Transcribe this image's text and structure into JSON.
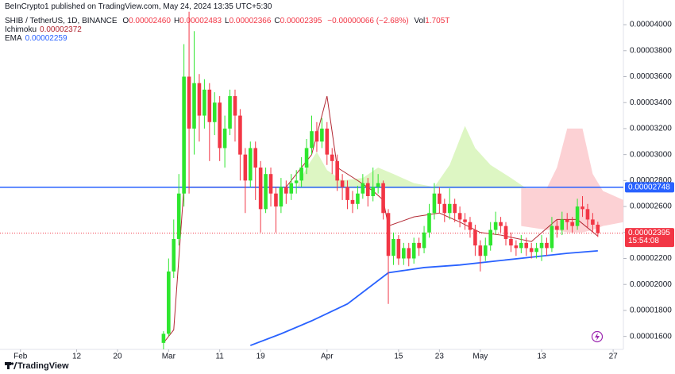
{
  "chart_data": {
    "type": "candlestick",
    "publisher": "BeInCrypto1 published on TradingView.com, May 24, 2024 13:35 UTC+5:30",
    "title": "SHIB / TetherUS, 1D, BINANCE",
    "ohlc_legend": [
      {
        "key": "O",
        "text": "0.00002460"
      },
      {
        "key": "H",
        "text": "0.00002483"
      },
      {
        "key": "L",
        "text": "0.00002366"
      },
      {
        "key": "C",
        "text": "0.00002395"
      }
    ],
    "change": "−0.00000066 (−2.68%)",
    "volume": {
      "key": "Vol",
      "text": "1.705T"
    },
    "footer": "TradingView",
    "up_color": "#2ee62e",
    "down_color": "#f23645",
    "xlim": [
      "2024-01-28",
      "2024-05-29"
    ],
    "xticks": [
      {
        "value": "2024-02-01",
        "label": "Feb"
      },
      {
        "value": "2024-02-12",
        "label": "12"
      },
      {
        "value": "2024-02-20",
        "label": "20"
      },
      {
        "value": "2024-03-01",
        "label": "Mar"
      },
      {
        "value": "2024-03-11",
        "label": "11"
      },
      {
        "value": "2024-03-19",
        "label": "19"
      },
      {
        "value": "2024-04-01",
        "label": "Apr"
      },
      {
        "value": "2024-04-15",
        "label": "15"
      },
      {
        "value": "2024-04-23",
        "label": "23"
      },
      {
        "value": "2024-05-01",
        "label": "May"
      },
      {
        "value": "2024-05-13",
        "label": "13"
      },
      {
        "value": "2024-05-27",
        "label": "27"
      }
    ],
    "ylim": [
      1.5e-05,
      4.19e-05
    ],
    "yticks": [
      {
        "value": 1.6e-05,
        "label": "0.00001600"
      },
      {
        "value": 1.8e-05,
        "label": "0.00001800"
      },
      {
        "value": 2e-05,
        "label": "0.00002000"
      },
      {
        "value": 2.2e-05,
        "label": "0.00002200"
      },
      {
        "value": 2.4e-05,
        "label": "0.00002400"
      },
      {
        "value": 2.6e-05,
        "label": "0.00002600"
      },
      {
        "value": 2.8e-05,
        "label": "0.00002800"
      },
      {
        "value": 3e-05,
        "label": "0.00003000"
      },
      {
        "value": 3.2e-05,
        "label": "0.00003200"
      },
      {
        "value": 3.4e-05,
        "label": "0.00003400"
      },
      {
        "value": 3.6e-05,
        "label": "0.00003600"
      },
      {
        "value": 3.8e-05,
        "label": "0.00003800"
      },
      {
        "value": 4e-05,
        "label": "0.00004000"
      }
    ],
    "x": [
      "2024-02-29",
      "2024-03-01",
      "2024-03-02",
      "2024-03-03",
      "2024-03-04",
      "2024-03-05",
      "2024-03-06",
      "2024-03-07",
      "2024-03-08",
      "2024-03-09",
      "2024-03-10",
      "2024-03-11",
      "2024-03-12",
      "2024-03-13",
      "2024-03-14",
      "2024-03-15",
      "2024-03-16",
      "2024-03-17",
      "2024-03-18",
      "2024-03-19",
      "2024-03-20",
      "2024-03-21",
      "2024-03-22",
      "2024-03-23",
      "2024-03-24",
      "2024-03-25",
      "2024-03-26",
      "2024-03-27",
      "2024-03-28",
      "2024-03-29",
      "2024-03-30",
      "2024-03-31",
      "2024-04-01",
      "2024-04-02",
      "2024-04-03",
      "2024-04-04",
      "2024-04-05",
      "2024-04-06",
      "2024-04-07",
      "2024-04-08",
      "2024-04-09",
      "2024-04-10",
      "2024-04-11",
      "2024-04-12",
      "2024-04-13",
      "2024-04-14",
      "2024-04-15",
      "2024-04-16",
      "2024-04-17",
      "2024-04-18",
      "2024-04-19",
      "2024-04-20",
      "2024-04-21",
      "2024-04-22",
      "2024-04-23",
      "2024-04-24",
      "2024-04-25",
      "2024-04-26",
      "2024-04-27",
      "2024-04-28",
      "2024-04-29",
      "2024-04-30",
      "2024-05-01",
      "2024-05-02",
      "2024-05-03",
      "2024-05-04",
      "2024-05-05",
      "2024-05-06",
      "2024-05-07",
      "2024-05-08",
      "2024-05-09",
      "2024-05-10",
      "2024-05-11",
      "2024-05-12",
      "2024-05-13",
      "2024-05-14",
      "2024-05-15",
      "2024-05-16",
      "2024-05-17",
      "2024-05-18",
      "2024-05-19",
      "2024-05-20",
      "2024-05-21",
      "2024-05-22",
      "2024-05-23",
      "2024-05-24"
    ],
    "open": [
      1.55e-05,
      1.62e-05,
      2.1e-05,
      2.35e-05,
      2.7e-05,
      3.6e-05,
      3.2e-05,
      3.55e-05,
      3.3e-05,
      3.5e-05,
      3.25e-05,
      3.4e-05,
      3.05e-05,
      3.2e-05,
      3.45e-05,
      3.3e-05,
      3e-05,
      2.8e-05,
      3.05e-05,
      2.9e-05,
      2.58e-05,
      2.85e-05,
      2.7e-05,
      2.6e-05,
      2.75e-05,
      2.7e-05,
      2.78e-05,
      2.8e-05,
      2.9e-05,
      3.05e-05,
      3.18e-05,
      3.1e-05,
      3.2e-05,
      3e-05,
      2.95e-05,
      2.8e-05,
      2.75e-05,
      2.65e-05,
      2.62e-05,
      2.7e-05,
      2.78e-05,
      2.68e-05,
      2.75e-05,
      2.78e-05,
      2.55e-05,
      2.22e-05,
      2.35e-05,
      2.2e-05,
      2.28e-05,
      2.2e-05,
      2.32e-05,
      2.28e-05,
      2.4e-05,
      2.55e-05,
      2.7e-05,
      2.62e-05,
      2.55e-05,
      2.62e-05,
      2.55e-05,
      2.5e-05,
      2.48e-05,
      2.42e-05,
      2.3e-05,
      2.22e-05,
      2.3e-05,
      2.42e-05,
      2.48e-05,
      2.45e-05,
      2.35e-05,
      2.3e-05,
      2.28e-05,
      2.32e-05,
      2.28e-05,
      2.25e-05,
      2.28e-05,
      2.32e-05,
      2.28e-05,
      2.45e-05,
      2.42e-05,
      2.5e-05,
      2.48e-05,
      2.45e-05,
      2.6e-05,
      2.58e-05,
      2.5e-05,
      2.46e-05
    ],
    "high": [
      1.64e-05,
      2.2e-05,
      2.5e-05,
      2.85e-05,
      3.85e-05,
      4.1e-05,
      3.95e-05,
      3.62e-05,
      3.58e-05,
      3.55e-05,
      3.48e-05,
      3.45e-05,
      3.3e-05,
      3.5e-05,
      3.5e-05,
      3.35e-05,
      3.05e-05,
      3.1e-05,
      3.1e-05,
      2.95e-05,
      2.9e-05,
      2.9e-05,
      2.75e-05,
      2.82e-05,
      2.8e-05,
      2.85e-05,
      2.88e-05,
      2.98e-05,
      3.12e-05,
      3.3e-05,
      3.25e-05,
      3.28e-05,
      3.25e-05,
      3.05e-05,
      3e-05,
      2.85e-05,
      2.8e-05,
      2.72e-05,
      2.76e-05,
      2.85e-05,
      2.82e-05,
      2.9e-05,
      2.85e-05,
      2.8e-05,
      2.58e-05,
      2.4e-05,
      2.38e-05,
      2.32e-05,
      2.32e-05,
      2.36e-05,
      2.36e-05,
      2.45e-05,
      2.62e-05,
      2.78e-05,
      2.75e-05,
      2.66e-05,
      2.74e-05,
      2.66e-05,
      2.6e-05,
      2.55e-05,
      2.52e-05,
      2.46e-05,
      2.34e-05,
      2.36e-05,
      2.48e-05,
      2.56e-05,
      2.52e-05,
      2.48e-05,
      2.4e-05,
      2.34e-05,
      2.38e-05,
      2.36e-05,
      2.32e-05,
      2.32e-05,
      2.38e-05,
      2.36e-05,
      2.52e-05,
      2.5e-05,
      2.56e-05,
      2.55e-05,
      2.52e-05,
      2.66e-05,
      2.68e-05,
      2.62e-05,
      2.55e-05,
      2.483e-05
    ],
    "low": [
      1.5e-05,
      1.6e-05,
      2.05e-05,
      2.3e-05,
      2.6e-05,
      2.7e-05,
      3e-05,
      3.1e-05,
      3.2e-05,
      2.95e-05,
      3.15e-05,
      2.95e-05,
      2.9e-05,
      3.15e-05,
      3.1e-05,
      2.8e-05,
      2.55e-05,
      2.75e-05,
      2.65e-05,
      2.4e-05,
      2.55e-05,
      2.6e-05,
      2.4e-05,
      2.55e-05,
      2.62e-05,
      2.65e-05,
      2.7e-05,
      2.75e-05,
      2.85e-05,
      3e-05,
      3.02e-05,
      3.05e-05,
      2.92e-05,
      2.85e-05,
      2.72e-05,
      2.65e-05,
      2.58e-05,
      2.55e-05,
      2.58e-05,
      2.66e-05,
      2.6e-05,
      2.64e-05,
      2.7e-05,
      2.5e-05,
      1.85e-05,
      2.15e-05,
      2.15e-05,
      2.15e-05,
      2.14e-05,
      2.16e-05,
      2.22e-05,
      2.24e-05,
      2.36e-05,
      2.5e-05,
      2.55e-05,
      2.48e-05,
      2.5e-05,
      2.48e-05,
      2.44e-05,
      2.42e-05,
      2.36e-05,
      2.22e-05,
      2.1e-05,
      2.18e-05,
      2.26e-05,
      2.38e-05,
      2.4e-05,
      2.3e-05,
      2.25e-05,
      2.22e-05,
      2.24e-05,
      2.22e-05,
      2.2e-05,
      2.2e-05,
      2.18e-05,
      2.22e-05,
      2.25e-05,
      2.36e-05,
      2.38e-05,
      2.42e-05,
      2.4e-05,
      2.42e-05,
      2.52e-05,
      2.44e-05,
      2.4e-05,
      2.366e-05
    ],
    "close": [
      1.62e-05,
      2.1e-05,
      2.35e-05,
      2.7e-05,
      3.6e-05,
      3.2e-05,
      3.55e-05,
      3.3e-05,
      3.5e-05,
      3.25e-05,
      3.4e-05,
      3.05e-05,
      3.2e-05,
      3.45e-05,
      3.3e-05,
      3e-05,
      2.8e-05,
      3.05e-05,
      2.9e-05,
      2.58e-05,
      2.85e-05,
      2.7e-05,
      2.6e-05,
      2.75e-05,
      2.7e-05,
      2.78e-05,
      2.8e-05,
      2.9e-05,
      3.05e-05,
      3.18e-05,
      3.1e-05,
      3.2e-05,
      3e-05,
      2.95e-05,
      2.8e-05,
      2.75e-05,
      2.65e-05,
      2.62e-05,
      2.7e-05,
      2.78e-05,
      2.68e-05,
      2.75e-05,
      2.78e-05,
      2.55e-05,
      2.22e-05,
      2.35e-05,
      2.2e-05,
      2.28e-05,
      2.2e-05,
      2.32e-05,
      2.28e-05,
      2.4e-05,
      2.55e-05,
      2.7e-05,
      2.62e-05,
      2.55e-05,
      2.62e-05,
      2.55e-05,
      2.5e-05,
      2.48e-05,
      2.42e-05,
      2.3e-05,
      2.22e-05,
      2.3e-05,
      2.42e-05,
      2.48e-05,
      2.45e-05,
      2.35e-05,
      2.3e-05,
      2.28e-05,
      2.32e-05,
      2.28e-05,
      2.25e-05,
      2.28e-05,
      2.32e-05,
      2.28e-05,
      2.45e-05,
      2.42e-05,
      2.5e-05,
      2.48e-05,
      2.45e-05,
      2.6e-05,
      2.58e-05,
      2.5e-05,
      2.46e-05,
      2.395e-05
    ],
    "lines": [
      {
        "name": "Ichimoku",
        "legend_value": "0.00002372",
        "color": "#b22833",
        "x": [
          "2024-02-29",
          "2024-03-02",
          "2024-03-04",
          "2024-03-24",
          "2024-03-29",
          "2024-04-01",
          "2024-04-03",
          "2024-04-07",
          "2024-04-10",
          "2024-04-12",
          "2024-04-13",
          "2024-04-18",
          "2024-04-23",
          "2024-04-27",
          "2024-05-01",
          "2024-05-05",
          "2024-05-11",
          "2024-05-16",
          "2024-05-20",
          "2024-05-24"
        ],
        "values": [
          1.55e-05,
          1.65e-05,
          2.75e-05,
          2.75e-05,
          3e-05,
          3.45e-05,
          2.9e-05,
          2.8e-05,
          2.72e-05,
          2.65e-05,
          2.45e-05,
          2.52e-05,
          2.55e-05,
          2.48e-05,
          2.4e-05,
          2.38e-05,
          2.33e-05,
          2.5e-05,
          2.5e-05,
          2.372e-05
        ]
      },
      {
        "name": "EMA",
        "legend_value": "0.00002259",
        "color": "#2962ff",
        "x": [
          "2024-03-17",
          "2024-03-23",
          "2024-03-29",
          "2024-04-05",
          "2024-04-13",
          "2024-04-20",
          "2024-04-27",
          "2024-05-04",
          "2024-05-11",
          "2024-05-18",
          "2024-05-24"
        ],
        "values": [
          1.53e-05,
          1.62e-05,
          1.72e-05,
          1.85e-05,
          2.09e-05,
          2.13e-05,
          2.15e-05,
          2.18e-05,
          2.21e-05,
          2.24e-05,
          2.259e-05
        ]
      }
    ],
    "clouds": [
      {
        "color": "#d7f5b8",
        "x": [
          "2024-03-26",
          "2024-03-28",
          "2024-03-30",
          "2024-04-01",
          "2024-04-04",
          "2024-04-08",
          "2024-04-11",
          "2024-04-14",
          "2024-04-18",
          "2024-04-22",
          "2024-04-25",
          "2024-04-28",
          "2024-04-30",
          "2024-05-03",
          "2024-05-07",
          "2024-05-10"
        ],
        "upper": [
          2.74e-05,
          2.9e-05,
          3.02e-05,
          2.88e-05,
          2.8e-05,
          2.82e-05,
          2.9e-05,
          2.85e-05,
          2.78e-05,
          2.75e-05,
          2.92e-05,
          3.22e-05,
          3.05e-05,
          2.92e-05,
          2.82e-05,
          2.74e-05
        ],
        "lower": [
          2.74e-05,
          2.74e-05,
          2.74e-05,
          2.74e-05,
          2.74e-05,
          2.74e-05,
          2.74e-05,
          2.74e-05,
          2.74e-05,
          2.74e-05,
          2.74e-05,
          2.74e-05,
          2.74e-05,
          2.74e-05,
          2.74e-05,
          2.74e-05
        ]
      },
      {
        "color": "#fbc9cd",
        "x": [
          "2024-05-09",
          "2024-05-14",
          "2024-05-16",
          "2024-05-18",
          "2024-05-21",
          "2024-05-23",
          "2024-05-25",
          "2024-05-29"
        ],
        "upper": [
          2.74e-05,
          2.74e-05,
          2.9e-05,
          3.2e-05,
          3.2e-05,
          2.85e-05,
          2.72e-05,
          2.65e-05
        ],
        "lower": [
          2.45e-05,
          2.42e-05,
          2.42e-05,
          2.4e-05,
          2.4e-05,
          2.42e-05,
          2.45e-05,
          2.48e-05
        ]
      }
    ],
    "hline": {
      "value": 2.748e-05,
      "label": "0.00002748",
      "color": "#2962ff"
    },
    "price_line": {
      "value": 2.395e-05,
      "label": "0.00002395",
      "countdown": "15:54:08",
      "color": "#f23645"
    }
  }
}
